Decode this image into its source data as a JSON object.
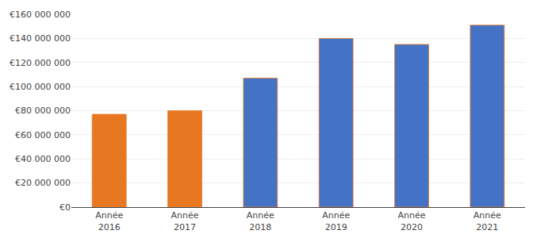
{
  "chart_data": {
    "type": "bar",
    "categories": [
      "Année\n2016",
      "Année\n2017",
      "Année\n2018",
      "Année\n2019",
      "Année\n2020",
      "Année\n2021"
    ],
    "values": [
      77000000,
      80000000,
      107000000,
      140000000,
      135000000,
      151000000
    ],
    "colors": [
      "#E87722",
      "#E87722",
      "#4472C4",
      "#4472C4",
      "#4472C4",
      "#4472C4"
    ],
    "ylim": [
      0,
      160000000
    ],
    "yticks": [
      {
        "value": 0,
        "label": "€0"
      },
      {
        "value": 20000000,
        "label": "€20 000 000"
      },
      {
        "value": 40000000,
        "label": "€40 000 000"
      },
      {
        "value": 60000000,
        "label": "€60 000 000"
      },
      {
        "value": 80000000,
        "label": "€80 000 000"
      },
      {
        "value": 100000000,
        "label": "€100 000 000"
      },
      {
        "value": 120000000,
        "label": "€120 000 000"
      },
      {
        "value": 140000000,
        "label": "€140 000 000"
      },
      {
        "value": 160000000,
        "label": "€160 000 000"
      }
    ],
    "grid": true
  }
}
